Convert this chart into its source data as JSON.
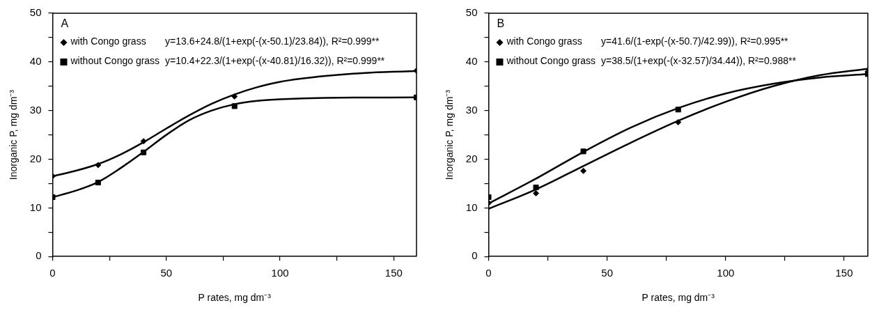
{
  "chart_data": [
    {
      "type": "scatter",
      "title": "A",
      "xlabel": "P rates, mg dm⁻³",
      "ylabel": "Inorganic P, mg dm⁻³",
      "xlim": [
        0,
        160
      ],
      "xticks": [
        0,
        {
          "value": 25,
          "label": null
        },
        50,
        {
          "value": 75,
          "label": null
        },
        100,
        {
          "value": 125,
          "label": null
        },
        150
      ],
      "ylim": [
        0,
        50
      ],
      "yticks": [
        0,
        {
          "value": 5,
          "label": null
        },
        10,
        {
          "value": 15,
          "label": null
        },
        20,
        {
          "value": 25,
          "label": null
        },
        30,
        {
          "value": 35,
          "label": null
        },
        40,
        {
          "value": 45,
          "label": null
        },
        50
      ],
      "grid": false,
      "legend": "top left",
      "annotations": [
        "y=13.6+24.8/(1+exp(-(x-50.1)/23.84)), R²=0.999**",
        "y=10.4+22.3/(1+exp(-(x-40.81)/16.32)), R²=0.999**"
      ],
      "series": [
        {
          "name": "with Congo grass",
          "type": "scatter",
          "marker": "diamond",
          "color": "#000000",
          "x": [
            0,
            20,
            40,
            80,
            160
          ],
          "values": [
            16.5,
            18.8,
            23.7,
            32.9,
            38.2
          ]
        },
        {
          "name": "without Congo grass",
          "type": "scatter",
          "marker": "square",
          "color": "#000000",
          "x": [
            0,
            20,
            40,
            80,
            160
          ],
          "values": [
            12.2,
            15.2,
            21.4,
            30.9,
            32.7
          ]
        },
        {
          "type": "line",
          "marker": "none",
          "color": "#000000",
          "x": [
            0,
            10,
            20,
            30,
            40,
            50,
            60,
            70,
            80,
            90,
            100,
            120,
            140,
            160
          ],
          "values": [
            16.5,
            17.6,
            19.0,
            21.0,
            23.5,
            26.3,
            29.0,
            31.4,
            33.3,
            34.8,
            35.9,
            37.1,
            37.8,
            38.1
          ]
        },
        {
          "type": "line",
          "marker": "none",
          "color": "#000000",
          "x": [
            0,
            10,
            20,
            30,
            40,
            50,
            60,
            70,
            80,
            90,
            100,
            120,
            160
          ],
          "values": [
            12.2,
            13.5,
            15.3,
            18.2,
            21.5,
            25.0,
            28.0,
            30.0,
            31.3,
            32.0,
            32.3,
            32.6,
            32.7
          ]
        }
      ]
    },
    {
      "type": "scatter",
      "title": "B",
      "xlabel": "P rates, mg dm⁻³",
      "ylabel": "Inorganic P, mg dm⁻³",
      "xlim": [
        0,
        160
      ],
      "xticks": [
        0,
        {
          "value": 25,
          "label": null
        },
        50,
        {
          "value": 75,
          "label": null
        },
        100,
        {
          "value": 125,
          "label": null
        },
        150
      ],
      "ylim": [
        0,
        50
      ],
      "yticks": [
        0,
        {
          "value": 5,
          "label": null
        },
        10,
        {
          "value": 15,
          "label": null
        },
        20,
        {
          "value": 25,
          "label": null
        },
        30,
        {
          "value": 35,
          "label": null
        },
        40,
        {
          "value": 45,
          "label": null
        },
        50
      ],
      "grid": false,
      "legend": "top left",
      "annotations": [
        "y=41.6/(1-exp(-(x-50.7)/42.99)), R²=0.995**",
        "y=38.5/(1+exp(-(x-32.57)/34.44)), R²=0.988**"
      ],
      "series": [
        {
          "name": "with Congo grass",
          "type": "scatter",
          "marker": "diamond",
          "color": "#000000",
          "x": [
            0,
            20,
            40,
            80,
            160
          ],
          "values": [
            11.0,
            13.0,
            17.6,
            27.6,
            38.0
          ]
        },
        {
          "name": "without Congo grass",
          "type": "scatter",
          "marker": "square",
          "color": "#000000",
          "x": [
            0,
            20,
            40,
            80,
            160
          ],
          "values": [
            12.2,
            14.2,
            21.6,
            30.2,
            37.5
          ]
        },
        {
          "type": "line",
          "marker": "none",
          "color": "#000000",
          "x": [
            0,
            20,
            40,
            60,
            80,
            100,
            120,
            140,
            160
          ],
          "values": [
            9.8,
            13.8,
            18.6,
            23.4,
            27.9,
            31.8,
            35.0,
            37.3,
            38.6
          ]
        },
        {
          "type": "line",
          "marker": "none",
          "color": "#000000",
          "x": [
            0,
            20,
            40,
            60,
            80,
            100,
            120,
            140,
            160
          ],
          "values": [
            10.9,
            16.0,
            21.5,
            26.5,
            30.5,
            33.5,
            35.5,
            36.8,
            37.5
          ]
        }
      ]
    }
  ]
}
